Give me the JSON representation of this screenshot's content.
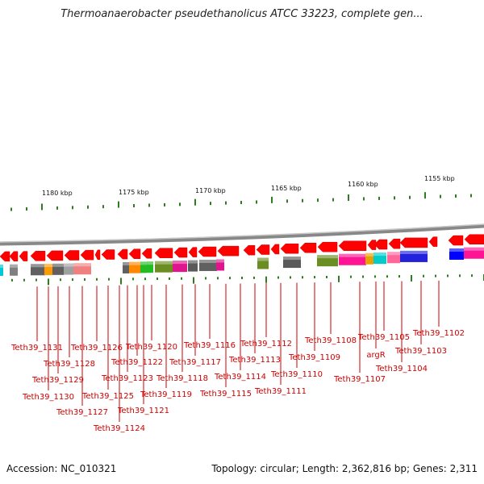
{
  "title": "Thermoanaerobacter pseudethanolicus ATCC 33223, complete gen...",
  "footer": {
    "accession": "Accession: NC_010321",
    "topology": "Topology: circular; Length: 2,362,816 bp; Genes: 2,311"
  },
  "scale_labels": [
    "1180 kbp",
    "1175 kbp",
    "1170 kbp",
    "1165 kbp",
    "1160 kbp",
    "1155 kbp"
  ],
  "colors": {
    "forward_gene": "#ff0000",
    "backbone": "#8a8a8a",
    "tick": "#2e7d1e",
    "label": "#cc0000"
  },
  "gene_labels": [
    "Teth39_1131",
    "Teth39_1130",
    "Teth39_1129",
    "Teth39_1128",
    "Teth39_1127",
    "Teth39_1126",
    "Teth39_1125",
    "Teth39_1124",
    "Teth39_1123",
    "Teth39_1122",
    "Teth39_1121",
    "Teth39_1120",
    "Teth39_1119",
    "Teth39_1118",
    "Teth39_1117",
    "Teth39_1116",
    "Teth39_1115",
    "Teth39_1114",
    "Teth39_1113",
    "Teth39_1112",
    "Teth39_1111",
    "Teth39_1110",
    "Teth39_1109",
    "Teth39_1108",
    "Teth39_1107",
    "argR",
    "Teth39_1105",
    "Teth39_1104",
    "Teth39_1103",
    "Teth39_1102"
  ],
  "cog_colors": [
    "#00c8d6",
    "#808080",
    "#ff9900",
    "#606060",
    "#a0a0a0",
    "#f08080",
    "#ff8800",
    "#22bb22",
    "#6b8e23",
    "#e0148c",
    "#5a5a5a",
    "#ff1493",
    "#e8a000",
    "#00cccc",
    "#ff6699",
    "#2222dd",
    "#0000ff"
  ]
}
